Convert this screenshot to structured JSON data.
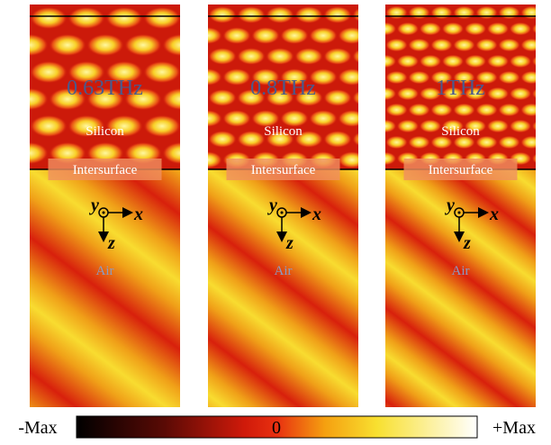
{
  "panels": [
    {
      "frequency": "0.63THz",
      "upper": "Silicon",
      "interface": "Intersurface",
      "lower": "Air",
      "axis_y": "y",
      "axis_x": "x",
      "axis_z": "z"
    },
    {
      "frequency": "0.8THz",
      "upper": "Silicon",
      "interface": "Intersurface",
      "lower": "Air",
      "axis_y": "y",
      "axis_x": "x",
      "axis_z": "z"
    },
    {
      "frequency": "1THz",
      "upper": "Silicon",
      "interface": "Intersurface",
      "lower": "Air",
      "axis_y": "y",
      "axis_x": "x",
      "axis_z": "z"
    }
  ],
  "colorbar": {
    "min": "-Max",
    "mid": "0",
    "max": "+Max"
  }
}
